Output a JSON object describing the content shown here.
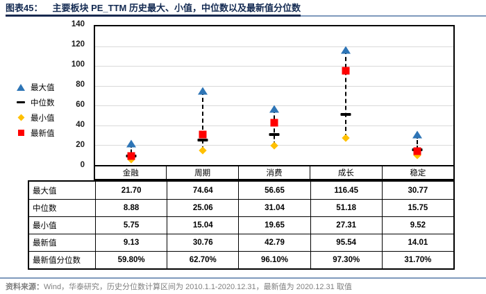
{
  "header": {
    "tag": "图表45：",
    "title": "主要板块 PE_TTM 历史最大、小值，中位数以及最新值分位数"
  },
  "chart_data": {
    "type": "scatter",
    "title": "主要板块 PE_TTM 历史最大、小值，中位数以及最新值分位数",
    "categories": [
      "金融",
      "周期",
      "消费",
      "成长",
      "稳定"
    ],
    "series": [
      {
        "name": "最大值",
        "marker": "triangle",
        "color": "#2E75B6",
        "values": [
          21.7,
          74.64,
          56.65,
          116.45,
          30.77
        ]
      },
      {
        "name": "中位数",
        "marker": "dash",
        "color": "#000000",
        "values": [
          8.88,
          25.06,
          31.04,
          51.18,
          15.75
        ]
      },
      {
        "name": "最小值",
        "marker": "diamond",
        "color": "#FFC000",
        "values": [
          5.75,
          15.04,
          19.65,
          27.31,
          9.52
        ]
      },
      {
        "name": "最新值",
        "marker": "square",
        "color": "#FF0000",
        "values": [
          9.13,
          30.76,
          42.79,
          95.54,
          14.01
        ]
      }
    ],
    "range_line": {
      "from_series": "最大值",
      "to_series": "最小值",
      "style": "dashed",
      "color": "#000000"
    },
    "ylim": [
      0,
      140
    ],
    "ytick_step": 20,
    "grid": true,
    "legend_position": "left"
  },
  "table": {
    "row_labels": [
      "最大值",
      "中位数",
      "最小值",
      "最新值",
      "最新值分位数"
    ],
    "rows": [
      [
        "21.70",
        "74.64",
        "56.65",
        "116.45",
        "30.77"
      ],
      [
        "8.88",
        "25.06",
        "31.04",
        "51.18",
        "15.75"
      ],
      [
        "5.75",
        "15.04",
        "19.65",
        "27.31",
        "9.52"
      ],
      [
        "9.13",
        "30.76",
        "42.79",
        "95.54",
        "14.01"
      ],
      [
        "59.80%",
        "62.70%",
        "96.10%",
        "97.30%",
        "31.70%"
      ]
    ]
  },
  "footer": {
    "label": "资料来源：",
    "text": "Wind，华泰研究，历史分位数计算区间为 2010.1.1-2020.12.31，最新值为 2020.12.31 取值"
  }
}
